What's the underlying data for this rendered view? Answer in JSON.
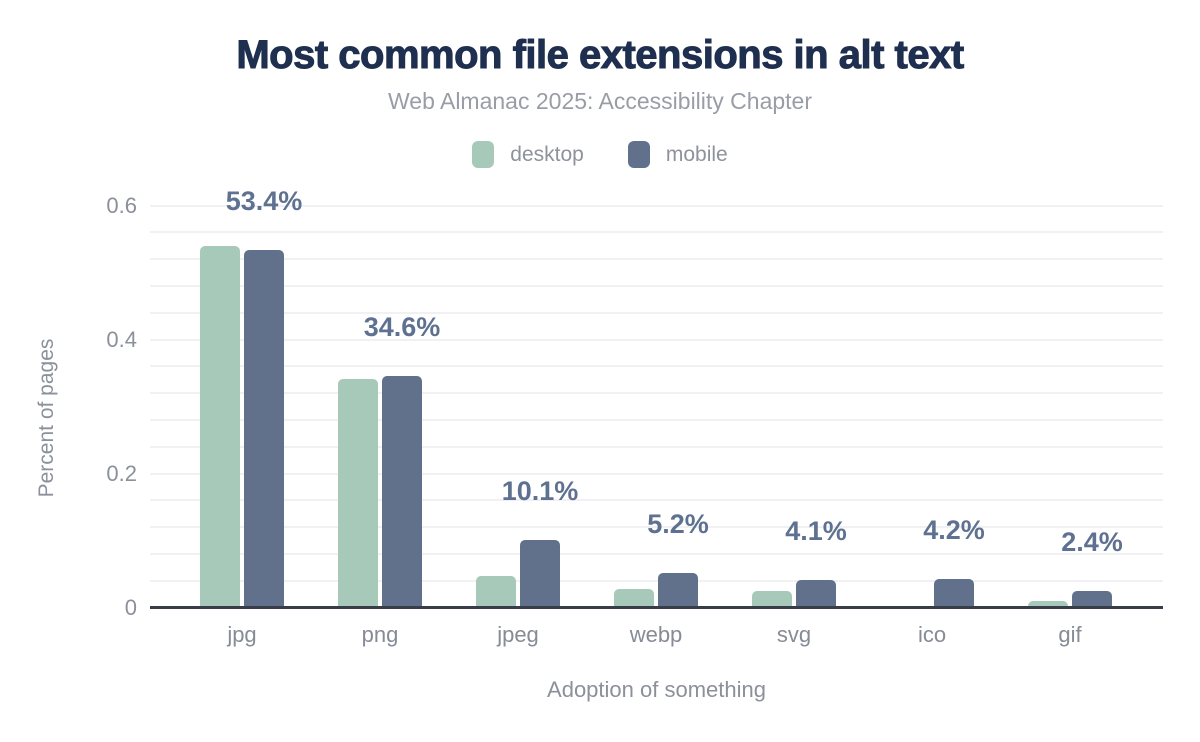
{
  "colors": {
    "background": "#ffffff",
    "title": "#1e2f4f",
    "subtitle": "#989da6",
    "legend_text": "#8d929c",
    "axis_text": "#8b909b",
    "tick_text": "#8b909b",
    "category_text": "#868b95",
    "data_label": "#5f7191",
    "gridline": "#f1f1f3",
    "axis_line": "#383e48",
    "desktop": "#a7c9ba",
    "mobile": "#61718c"
  },
  "chart_data": {
    "type": "bar",
    "title": "Most common file extensions in alt text",
    "subtitle": "Web Almanac 2025: Accessibility Chapter",
    "xlabel": "Adoption of something",
    "ylabel": "Percent of pages",
    "categories": [
      "jpg",
      "png",
      "jpeg",
      "webp",
      "svg",
      "ico",
      "gif"
    ],
    "series": [
      {
        "name": "desktop",
        "color": "#a7c9ba",
        "values": [
          0.54,
          0.341,
          0.047,
          0.027,
          0.024,
          0.0,
          0.01
        ]
      },
      {
        "name": "mobile",
        "color": "#61718c",
        "values": [
          0.534,
          0.346,
          0.101,
          0.052,
          0.041,
          0.042,
          0.024
        ]
      }
    ],
    "data_labels": [
      "53.4%",
      "34.6%",
      "10.1%",
      "5.2%",
      "4.1%",
      "4.2%",
      "2.4%"
    ],
    "data_labels_follow_series": "mobile",
    "yticks": [
      0,
      0.2,
      0.4,
      0.6
    ],
    "ytick_labels": [
      "0",
      "0.2",
      "0.4",
      "0.6"
    ],
    "ylim": [
      0,
      0.62
    ],
    "grid_step": 0.04,
    "grid": true,
    "legend_position": "top"
  }
}
